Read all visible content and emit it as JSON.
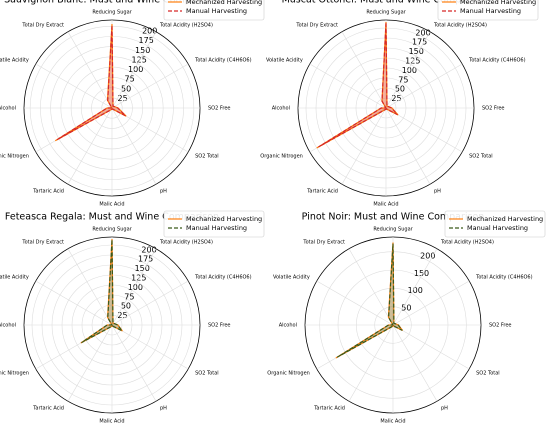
{
  "chart_data": [
    {
      "type": "radar",
      "title": "Sauvignon Blanc: Must and Wine Comparison",
      "categories": [
        "Reducing Sugar",
        "Total Acidity (H2SO4)",
        "Total Acidity (C4H6O6)",
        "SO2 Free",
        "SO2 Total",
        "pH",
        "Malic Acid",
        "Tartaric Acid",
        "Organic Nitrogen",
        "Alcohol",
        "Volatile Acidity",
        "Total Dry Extract"
      ],
      "series": [
        {
          "name": "Mechanized Harvesting",
          "color": "#ff7f0e",
          "values": [
            205,
            5,
            7,
            15,
            40,
            3,
            3,
            5,
            160,
            12,
            0.5,
            22
          ]
        },
        {
          "name": "Manual Harvesting",
          "color": "#d62728",
          "values": [
            200,
            5,
            7,
            14,
            38,
            3,
            3,
            5,
            155,
            12,
            0.5,
            21
          ]
        }
      ],
      "ylim": [
        0,
        215
      ],
      "yticks": [
        25,
        50,
        75,
        100,
        125,
        150,
        175,
        200
      ],
      "grid": true,
      "legend": "upper right"
    },
    {
      "type": "radar",
      "title": "Muscat Ottonel: Must and Wine Comparison",
      "categories": [
        "Reducing Sugar",
        "Total Acidity (H2SO4)",
        "Total Acidity (C4H6O6)",
        "SO2 Free",
        "SO2 Total",
        "pH",
        "Malic Acid",
        "Tartaric Acid",
        "Organic Nitrogen",
        "Alcohol",
        "Volatile Acidity",
        "Total Dry Extract"
      ],
      "series": [
        {
          "name": "Mechanized Harvesting",
          "color": "#ff7f0e",
          "values": [
            215,
            5,
            7,
            15,
            35,
            3,
            3,
            5,
            200,
            12,
            0.5,
            20
          ]
        },
        {
          "name": "Manual Harvesting",
          "color": "#d62728",
          "values": [
            212,
            5,
            7,
            14,
            33,
            3,
            3,
            5,
            195,
            12,
            0.5,
            20
          ]
        }
      ],
      "ylim": [
        0,
        220
      ],
      "yticks": [
        25,
        50,
        75,
        100,
        125,
        150,
        175,
        200
      ],
      "grid": true,
      "legend": "upper right"
    },
    {
      "type": "radar",
      "title": "Feteasca Regala: Must and Wine Comparison",
      "categories": [
        "Reducing Sugar",
        "Total Acidity (H2SO4)",
        "Total Acidity (C4H6O6)",
        "SO2 Free",
        "SO2 Total",
        "pH",
        "Malic Acid",
        "Tartaric Acid",
        "Organic Nitrogen",
        "Alcohol",
        "Volatile Acidity",
        "Total Dry Extract"
      ],
      "series": [
        {
          "name": "Mechanized Harvesting",
          "color": "#ff7f0e",
          "values": [
            215,
            5,
            7,
            15,
            30,
            3,
            3,
            5,
            90,
            12,
            0.5,
            22
          ]
        },
        {
          "name": "Manual Harvesting",
          "color": "#3a5a1a",
          "values": [
            212,
            5,
            7,
            14,
            29,
            3,
            3,
            5,
            88,
            12,
            0.5,
            21
          ]
        }
      ],
      "ylim": [
        0,
        220
      ],
      "yticks": [
        25,
        50,
        75,
        100,
        125,
        150,
        175,
        200
      ],
      "grid": true,
      "legend": "upper right"
    },
    {
      "type": "radar",
      "title": "Pinot Noir: Must and Wine Comparison",
      "categories": [
        "Reducing Sugar",
        "Total Acidity (H2SO4)",
        "Total Acidity (C4H6O6)",
        "SO2 Free",
        "SO2 Total",
        "pH",
        "Malic Acid",
        "Tartaric Acid",
        "Organic Nitrogen",
        "Alcohol",
        "Volatile Acidity",
        "Total Dry Extract"
      ],
      "series": [
        {
          "name": "Mechanized Harvesting",
          "color": "#ff7f0e",
          "values": [
            225,
            5,
            7,
            15,
            30,
            3,
            3,
            5,
            180,
            12,
            0.5,
            25
          ]
        },
        {
          "name": "Manual Harvesting",
          "color": "#3a5a1a",
          "values": [
            222,
            5,
            7,
            14,
            29,
            3,
            3,
            5,
            176,
            12,
            0.5,
            24
          ]
        }
      ],
      "ylim": [
        0,
        240
      ],
      "yticks": [
        50,
        100,
        150,
        200
      ],
      "grid": true,
      "legend": "upper right"
    }
  ]
}
